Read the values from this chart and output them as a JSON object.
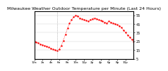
{
  "title": "Milwaukee Weather Outdoor Temperature per Minute (Last 24 Hours)",
  "title_fontsize": 4.5,
  "line_color": "#ff0000",
  "background_color": "#ffffff",
  "plot_bg_color": "#ffffff",
  "grid_color": "#cccccc",
  "ylabel_right": true,
  "y_tick_labels": [
    "5",
    "15",
    "25",
    "35",
    "45",
    "55"
  ],
  "y_ticks": [
    5,
    15,
    25,
    35,
    45,
    55
  ],
  "ylim": [
    5,
    60
  ],
  "xlim": [
    0,
    1439
  ],
  "vline_x": 330,
  "x_values": [
    0,
    30,
    60,
    90,
    120,
    150,
    180,
    210,
    240,
    270,
    300,
    330,
    360,
    390,
    420,
    450,
    480,
    510,
    540,
    570,
    600,
    630,
    660,
    690,
    720,
    750,
    780,
    810,
    840,
    870,
    900,
    930,
    960,
    990,
    1020,
    1050,
    1080,
    1110,
    1140,
    1170,
    1200,
    1230,
    1260,
    1290,
    1320,
    1350,
    1380,
    1410,
    1439
  ],
  "y_values": [
    25,
    24,
    23,
    22,
    21,
    20,
    19,
    18,
    17,
    16,
    15,
    14,
    16,
    20,
    26,
    33,
    40,
    46,
    50,
    53,
    55,
    54,
    52,
    51,
    50,
    49,
    48,
    50,
    51,
    52,
    51,
    50,
    49,
    48,
    47,
    46,
    48,
    47,
    46,
    45,
    44,
    43,
    41,
    38,
    35,
    32,
    30,
    27,
    25
  ],
  "marker": ".",
  "markersize": 1.5,
  "linewidth": 0.6,
  "linestyle": "dotted",
  "tick_fontsize": 3.5,
  "xlabel_fontsize": 3.0
}
